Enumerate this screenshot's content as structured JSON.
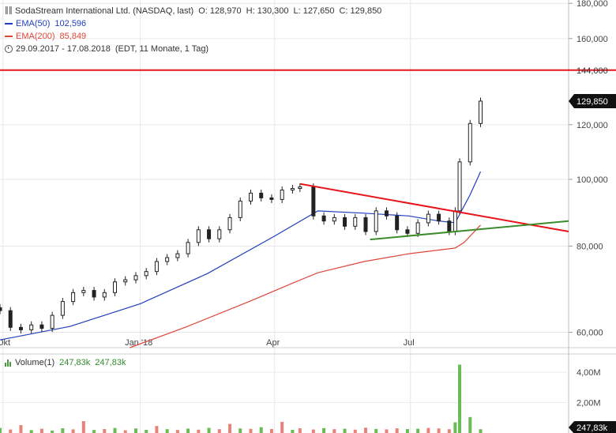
{
  "header": {
    "title": "SodaStream International Ltd. (NASDAQ, last)",
    "open": "O: 128,970",
    "high": "H: 130,300",
    "low": "L: 127,650",
    "close": "C: 129,850",
    "ema50_label": "EMA(50)",
    "ema50_value": "102,596",
    "ema200_label": "EMA(200)",
    "ema200_value": "85,849",
    "period": "29.09.2017 - 17.08.2018",
    "period_detail": "(EDT, 11 Monate, 1 Tag)"
  },
  "volume_legend": {
    "label": "Volume(1)",
    "value1": "247,83k",
    "value2": "247,83k"
  },
  "colors": {
    "ema50": "#1f3fbf",
    "ema200": "#e0453a",
    "candle": "#222222",
    "resistance": "#e8141b",
    "support": "#3c8c2c",
    "level_line": "#e8141b",
    "vol_up": "#6aba55",
    "vol_down": "#e8837a"
  },
  "icons": {
    "ohlc": "ohlc-icon",
    "clock": "clock-icon",
    "volume": "volume-bars-icon"
  },
  "chart_data": [
    {
      "type": "candlestick",
      "title": "SodaStream International Ltd. (NASDAQ, last)",
      "y_scale": "log",
      "ylim": [
        57000,
        182000
      ],
      "y_ticks": [
        "180,000",
        "160,000",
        "120,000",
        "100,000",
        "80,000",
        "60,000"
      ],
      "y_tick_values": [
        180000,
        160000,
        120000,
        100000,
        80000,
        60000
      ],
      "x_ticks": [
        "Okt",
        "Jan '18",
        "Apr",
        "Jul"
      ],
      "x_tick_dates": [
        "2017-10-01",
        "2018-01-01",
        "2018-04-01",
        "2018-07-01"
      ],
      "xlim": [
        "2017-09-29",
        "2018-10-15"
      ],
      "current_price_label": "129,850",
      "current_price": 129850,
      "horizontal_level": {
        "label": "144,000",
        "value": 144000
      },
      "trendlines": [
        {
          "name": "resistance",
          "from": {
            "date": "2018-04-18",
            "value": 98500
          },
          "to": {
            "date": "2018-10-15",
            "value": 84000
          }
        },
        {
          "name": "support",
          "from": {
            "date": "2018-06-04",
            "value": 81800
          },
          "to": {
            "date": "2018-10-15",
            "value": 87000
          }
        }
      ],
      "series": [
        {
          "name": "Price",
          "dates": [
            "2017-09-29",
            "2017-10-06",
            "2017-10-13",
            "2017-10-20",
            "2017-10-27",
            "2017-11-03",
            "2017-11-10",
            "2017-11-17",
            "2017-11-24",
            "2017-12-01",
            "2017-12-08",
            "2017-12-15",
            "2017-12-22",
            "2017-12-29",
            "2018-01-05",
            "2018-01-12",
            "2018-01-19",
            "2018-01-26",
            "2018-02-02",
            "2018-02-09",
            "2018-02-16",
            "2018-02-23",
            "2018-03-02",
            "2018-03-09",
            "2018-03-16",
            "2018-03-23",
            "2018-03-30",
            "2018-04-06",
            "2018-04-13",
            "2018-04-18",
            "2018-04-27",
            "2018-05-04",
            "2018-05-11",
            "2018-05-18",
            "2018-05-25",
            "2018-06-01",
            "2018-06-08",
            "2018-06-15",
            "2018-06-22",
            "2018-06-29",
            "2018-07-06",
            "2018-07-13",
            "2018-07-20",
            "2018-07-27",
            "2018-07-31",
            "2018-08-03",
            "2018-08-10",
            "2018-08-17"
          ],
          "values": [
            64500,
            61000,
            60500,
            61500,
            60800,
            63500,
            66500,
            68500,
            69000,
            67500,
            68500,
            71000,
            71500,
            72500,
            73500,
            76000,
            77000,
            78000,
            81000,
            84500,
            82000,
            84500,
            88000,
            93000,
            95500,
            94000,
            93500,
            96500,
            97000,
            97500,
            88500,
            87000,
            88000,
            85500,
            88000,
            84000,
            90000,
            88500,
            84500,
            83500,
            86500,
            89000,
            87000,
            84000,
            90000,
            106000,
            120500,
            129850
          ]
        },
        {
          "name": "EMA(50)",
          "dates": [
            "2017-09-29",
            "2017-11-15",
            "2018-01-01",
            "2018-02-15",
            "2018-03-31",
            "2018-04-30",
            "2018-05-31",
            "2018-06-30",
            "2018-07-20",
            "2018-07-31",
            "2018-08-10",
            "2018-08-17"
          ],
          "values": [
            58500,
            61200,
            66000,
            73000,
            82500,
            90000,
            89300,
            88500,
            87000,
            86500,
            95000,
            102596
          ]
        },
        {
          "name": "EMA(200)",
          "dates": [
            "2017-12-25",
            "2018-01-31",
            "2018-03-15",
            "2018-04-15",
            "2018-04-30",
            "2018-05-31",
            "2018-06-30",
            "2018-07-31",
            "2018-08-06",
            "2018-08-17"
          ],
          "values": [
            57000,
            61000,
            66500,
            71000,
            73200,
            76000,
            78000,
            79500,
            81000,
            85849
          ]
        }
      ]
    },
    {
      "type": "bar",
      "title": "Volume(1)",
      "ylim": [
        0,
        5200000
      ],
      "y_ticks": [
        "4,00M",
        "2,00M"
      ],
      "y_tick_values": [
        4000000,
        2000000
      ],
      "current_value_label": "247,83k",
      "current_value": 247830,
      "series": [
        {
          "name": "Volume(1)",
          "values": [
            330000,
            230000,
            520000,
            190000,
            280000,
            160000,
            310000,
            240000,
            780000,
            200000,
            260000,
            330000,
            180000,
            300000,
            210000,
            460000,
            250000,
            200000,
            290000,
            220000,
            340000,
            250000,
            600000,
            300000,
            270000,
            380000,
            260000,
            730000,
            210000,
            310000,
            230000,
            320000,
            250000,
            280000,
            220000,
            350000,
            270000,
            240000,
            310000,
            260000,
            280000,
            330000,
            300000,
            250000,
            700000,
            4500000,
            1050000,
            247830
          ],
          "up": [
            true,
            false,
            false,
            true,
            false,
            true,
            true,
            false,
            false,
            true,
            false,
            true,
            false,
            true,
            true,
            false,
            true,
            false,
            true,
            false,
            true,
            false,
            false,
            true,
            false,
            true,
            false,
            false,
            true,
            false,
            false,
            true,
            false,
            true,
            false,
            false,
            true,
            false,
            false,
            true,
            true,
            false,
            false,
            false,
            true,
            true,
            true,
            true
          ]
        }
      ]
    }
  ]
}
